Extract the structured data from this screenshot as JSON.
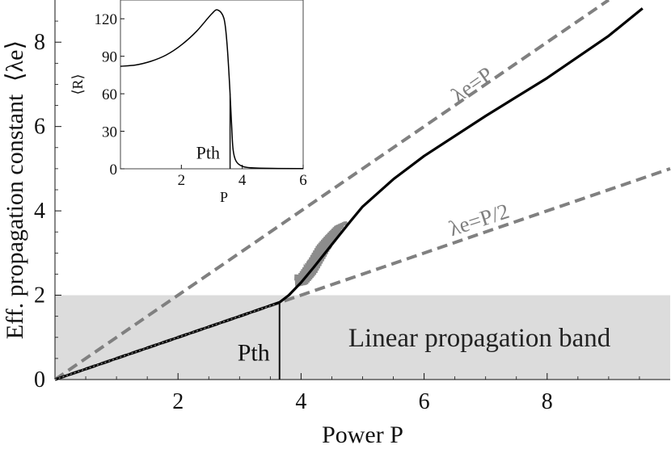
{
  "chart_data": [
    {
      "type": "line",
      "xlabel": "Power P",
      "ylabel": "Eff. propagation constant",
      "ylabel_symbol": "⟨λe⟩",
      "xlim": [
        0,
        10
      ],
      "ylim": [
        0,
        9
      ],
      "x_ticks": [
        2,
        4,
        6,
        8
      ],
      "y_ticks": [
        0,
        2,
        4,
        6,
        8
      ],
      "shaded_band": {
        "y_from": 0,
        "y_to": 2,
        "label": "Linear propagation band",
        "color": "#dcdcdc"
      },
      "threshold": {
        "x": 3.65,
        "label": "Pth"
      },
      "reference_lines": [
        {
          "name": "λe=P",
          "slope": 1,
          "color": "#808080",
          "style": "dashed"
        },
        {
          "name": "λe=P/2",
          "slope": 0.5,
          "color": "#808080",
          "style": "dashed"
        }
      ],
      "series": [
        {
          "color": "#000000",
          "x": [
            0,
            1,
            2,
            3,
            3.65,
            3.8,
            4.0,
            4.2,
            4.5,
            4.8,
            5.0,
            5.5,
            6.0,
            7.0,
            8.0,
            9.0,
            9.55
          ],
          "y": [
            0,
            0.5,
            1.0,
            1.5,
            1.83,
            2.0,
            2.3,
            2.65,
            3.2,
            3.75,
            4.1,
            4.75,
            5.3,
            6.25,
            7.15,
            8.15,
            8.8
          ]
        },
        {
          "color": "#8c8c8c",
          "style": "oscillating",
          "x_range": [
            3.9,
            4.75
          ],
          "x": [
            3.95,
            4.1,
            4.25,
            4.4,
            4.55,
            4.7
          ],
          "y": [
            2.35,
            2.55,
            2.85,
            3.15,
            3.45,
            3.7
          ],
          "amplitude": [
            0.15,
            0.3,
            0.35,
            0.28,
            0.2,
            0.05
          ]
        }
      ]
    },
    {
      "type": "line",
      "role": "inset",
      "xlabel": "P",
      "ylabel": "⟨R⟩",
      "xlim": [
        0,
        6
      ],
      "ylim": [
        0,
        135
      ],
      "x_ticks": [
        2,
        4,
        6
      ],
      "y_ticks": [
        0,
        30,
        60,
        90,
        120
      ],
      "threshold": {
        "x": 3.6,
        "label": "Pth"
      },
      "series": [
        {
          "color": "#000000",
          "x": [
            0,
            0.5,
            1,
            1.5,
            2,
            2.5,
            3,
            3.2,
            3.4,
            3.5,
            3.6,
            3.65,
            3.7,
            3.8,
            4,
            4.3,
            5,
            6
          ],
          "y": [
            82,
            83,
            86,
            91,
            99,
            110,
            124,
            127,
            120,
            100,
            60,
            35,
            15,
            6,
            2,
            0.8,
            0.3,
            0.2
          ]
        }
      ]
    }
  ]
}
